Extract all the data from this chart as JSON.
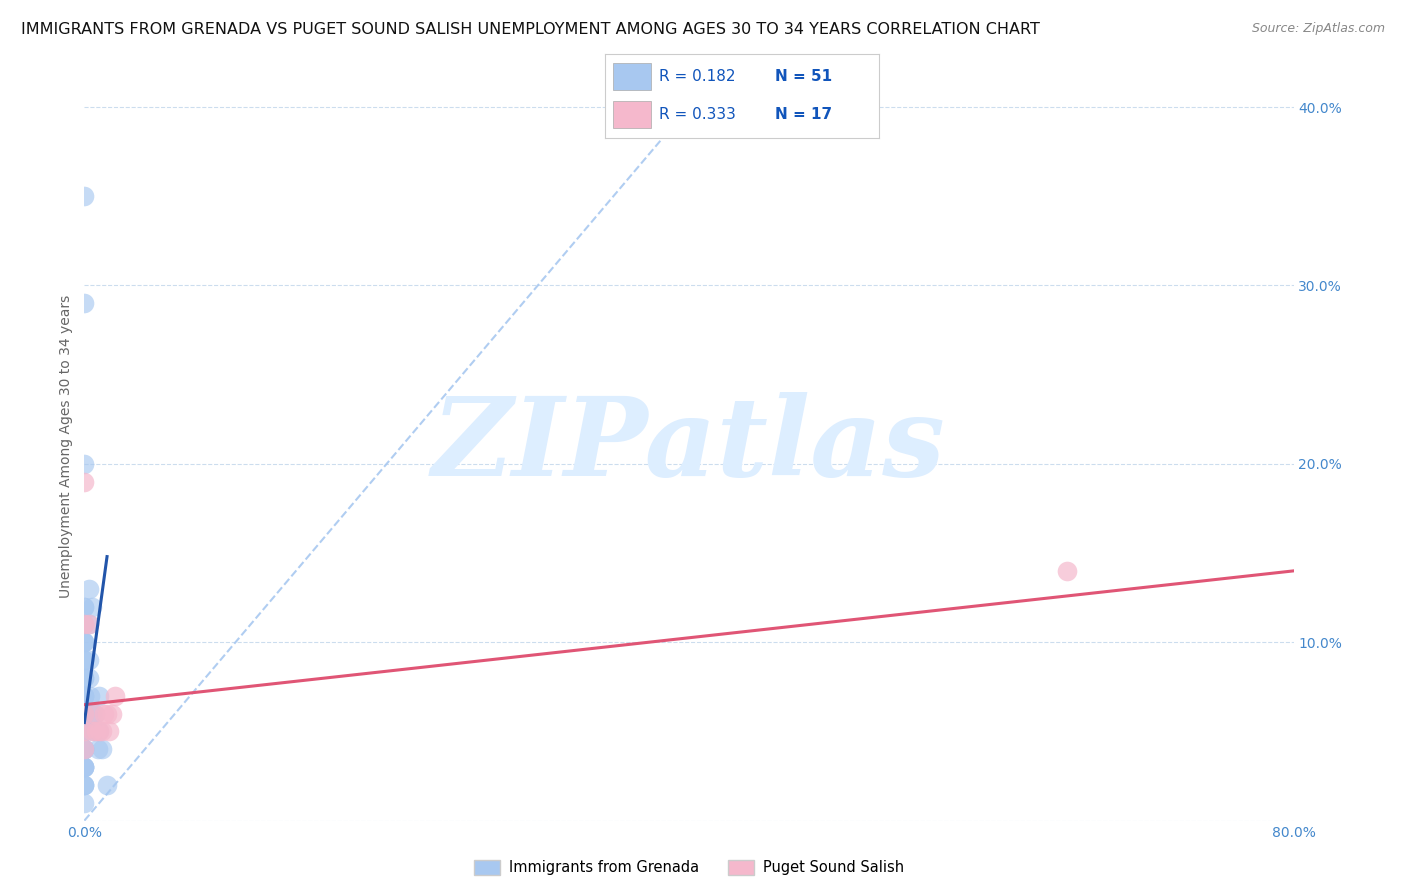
{
  "title": "IMMIGRANTS FROM GRENADA VS PUGET SOUND SALISH UNEMPLOYMENT AMONG AGES 30 TO 34 YEARS CORRELATION CHART",
  "source": "Source: ZipAtlas.com",
  "ylabel": "Unemployment Among Ages 30 to 34 years",
  "xlim": [
    0,
    0.8
  ],
  "ylim": [
    0,
    0.42
  ],
  "xticks": [
    0.0,
    0.1,
    0.2,
    0.3,
    0.4,
    0.5,
    0.6,
    0.7,
    0.8
  ],
  "xticklabels": [
    "0.0%",
    "",
    "",
    "",
    "",
    "",
    "",
    "",
    "80.0%"
  ],
  "yticks": [
    0.0,
    0.1,
    0.2,
    0.3,
    0.4
  ],
  "yticklabels": [
    "",
    "10.0%",
    "20.0%",
    "30.0%",
    "40.0%"
  ],
  "legend_R1": "0.182",
  "legend_N1": "51",
  "legend_R2": "0.333",
  "legend_N2": "17",
  "blue_scatter_color": "#a8c8f0",
  "pink_scatter_color": "#f5b8cc",
  "blue_line_color": "#2255aa",
  "pink_line_color": "#e05575",
  "dashed_line_color": "#a8c8f0",
  "watermark_text": "ZIPatlas",
  "watermark_color": "#ddeeff",
  "grenada_x": [
    0.0,
    0.0,
    0.0,
    0.0,
    0.0,
    0.0,
    0.0,
    0.0,
    0.0,
    0.0,
    0.0,
    0.0,
    0.0,
    0.0,
    0.0,
    0.0,
    0.0,
    0.0,
    0.0,
    0.0,
    0.0,
    0.0,
    0.0,
    0.0,
    0.0,
    0.0,
    0.0,
    0.0,
    0.0,
    0.0,
    0.0,
    0.0,
    0.0,
    0.0,
    0.0,
    0.0,
    0.003,
    0.003,
    0.003,
    0.003,
    0.004,
    0.005,
    0.005,
    0.006,
    0.007,
    0.008,
    0.009,
    0.01,
    0.01,
    0.012,
    0.015
  ],
  "grenada_y": [
    0.35,
    0.29,
    0.2,
    0.12,
    0.12,
    0.11,
    0.11,
    0.1,
    0.1,
    0.1,
    0.09,
    0.09,
    0.08,
    0.08,
    0.07,
    0.07,
    0.07,
    0.06,
    0.06,
    0.06,
    0.05,
    0.05,
    0.05,
    0.05,
    0.04,
    0.04,
    0.04,
    0.04,
    0.03,
    0.03,
    0.03,
    0.03,
    0.02,
    0.02,
    0.02,
    0.01,
    0.13,
    0.11,
    0.09,
    0.08,
    0.07,
    0.12,
    0.06,
    0.05,
    0.06,
    0.05,
    0.04,
    0.07,
    0.05,
    0.04,
    0.02
  ],
  "salish_x": [
    0.0,
    0.0,
    0.0,
    0.0,
    0.0,
    0.003,
    0.005,
    0.007,
    0.008,
    0.01,
    0.012,
    0.013,
    0.015,
    0.016,
    0.018,
    0.65,
    0.02
  ],
  "salish_y": [
    0.19,
    0.11,
    0.06,
    0.05,
    0.04,
    0.11,
    0.05,
    0.06,
    0.05,
    0.05,
    0.05,
    0.06,
    0.06,
    0.05,
    0.06,
    0.14,
    0.07
  ],
  "grid_color": "#ccddee",
  "background_color": "#ffffff",
  "title_fontsize": 11.5,
  "source_fontsize": 9,
  "axis_label_fontsize": 10,
  "tick_fontsize": 10,
  "tick_color": "#4488cc",
  "label_color": "#666666"
}
